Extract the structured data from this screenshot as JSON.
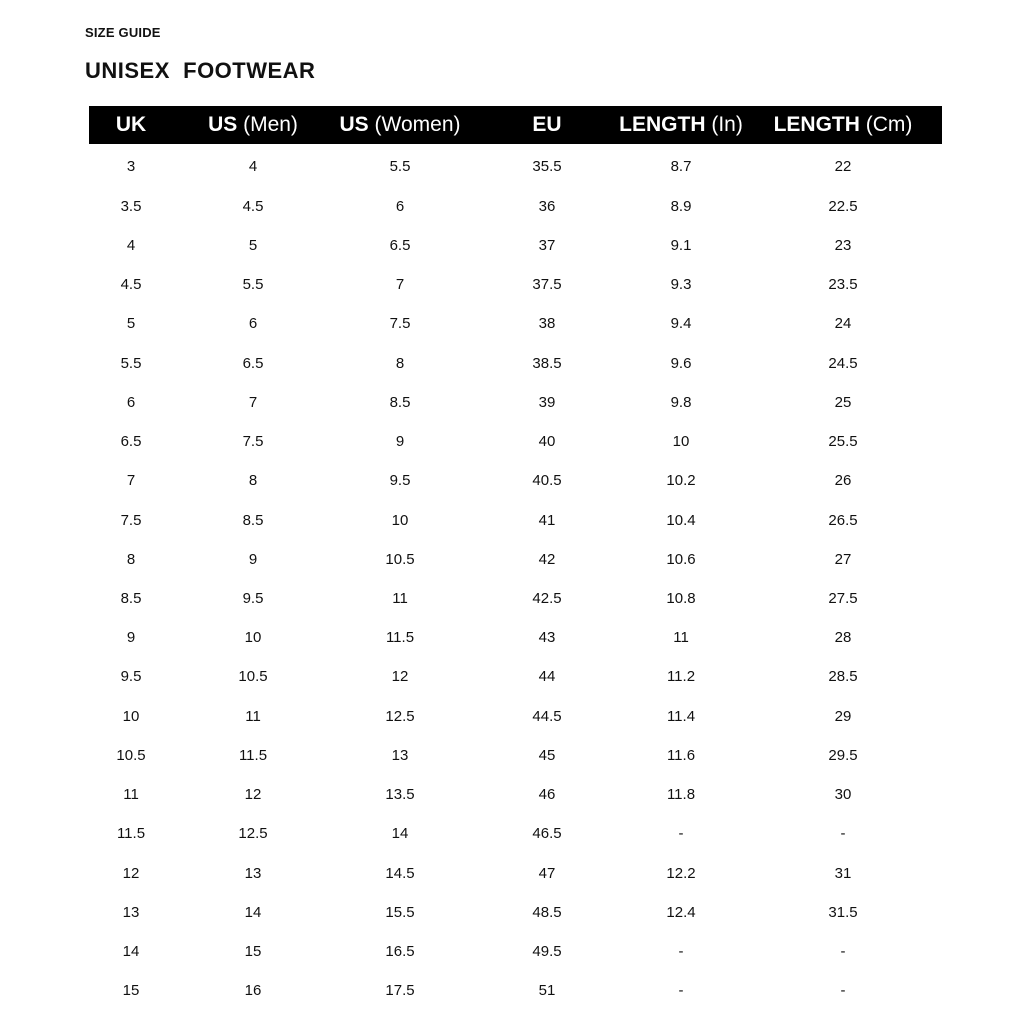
{
  "kicker": "SIZE GUIDE",
  "title": "UNISEX  FOOTWEAR",
  "columns": [
    {
      "bold": "UK",
      "unit": ""
    },
    {
      "bold": "US",
      "unit": " (Men)"
    },
    {
      "bold": "US",
      "unit": " (Women)"
    },
    {
      "bold": "EU",
      "unit": ""
    },
    {
      "bold": "LENGTH",
      "unit": " (In)"
    },
    {
      "bold": "LENGTH",
      "unit": " (Cm)"
    }
  ],
  "rows": [
    [
      "3",
      "4",
      "5.5",
      "35.5",
      "8.7",
      "22"
    ],
    [
      "3.5",
      "4.5",
      "6",
      "36",
      "8.9",
      "22.5"
    ],
    [
      "4",
      "5",
      "6.5",
      "37",
      "9.1",
      "23"
    ],
    [
      "4.5",
      "5.5",
      "7",
      "37.5",
      "9.3",
      "23.5"
    ],
    [
      "5",
      "6",
      "7.5",
      "38",
      "9.4",
      "24"
    ],
    [
      "5.5",
      "6.5",
      "8",
      "38.5",
      "9.6",
      "24.5"
    ],
    [
      "6",
      "7",
      "8.5",
      "39",
      "9.8",
      "25"
    ],
    [
      "6.5",
      "7.5",
      "9",
      "40",
      "10",
      "25.5"
    ],
    [
      "7",
      "8",
      "9.5",
      "40.5",
      "10.2",
      "26"
    ],
    [
      "7.5",
      "8.5",
      "10",
      "41",
      "10.4",
      "26.5"
    ],
    [
      "8",
      "9",
      "10.5",
      "42",
      "10.6",
      "27"
    ],
    [
      "8.5",
      "9.5",
      "11",
      "42.5",
      "10.8",
      "27.5"
    ],
    [
      "9",
      "10",
      "11.5",
      "43",
      "11",
      "28"
    ],
    [
      "9.5",
      "10.5",
      "12",
      "44",
      "11.2",
      "28.5"
    ],
    [
      "10",
      "11",
      "12.5",
      "44.5",
      "11.4",
      "29"
    ],
    [
      "10.5",
      "11.5",
      "13",
      "45",
      "11.6",
      "29.5"
    ],
    [
      "11",
      "12",
      "13.5",
      "46",
      "11.8",
      "30"
    ],
    [
      "11.5",
      "12.5",
      "14",
      "46.5",
      "-",
      "-"
    ],
    [
      "12",
      "13",
      "14.5",
      "47",
      "12.2",
      "31"
    ],
    [
      "13",
      "14",
      "15.5",
      "48.5",
      "12.4",
      "31.5"
    ],
    [
      "14",
      "15",
      "16.5",
      "49.5",
      "-",
      "-"
    ],
    [
      "15",
      "16",
      "17.5",
      "51",
      "-",
      "-"
    ]
  ]
}
